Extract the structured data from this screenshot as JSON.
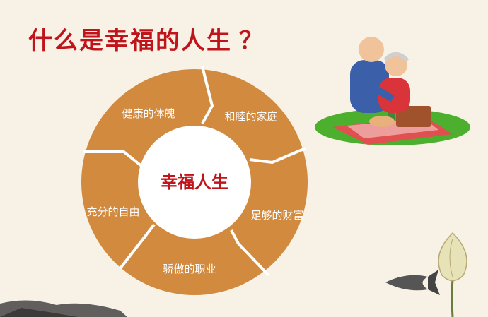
{
  "slide": {
    "title": "什么是幸福的人生",
    "title_mark": "？",
    "center": "幸福人生",
    "segments": [
      {
        "label": "健康的体魄"
      },
      {
        "label": "和睦的家庭"
      },
      {
        "label": "足够的财富"
      },
      {
        "label": "骄傲的职业"
      },
      {
        "label": "充分的自由"
      }
    ]
  },
  "colors": {
    "title": "#c0141b",
    "ring": "#d18a3e",
    "background": "#f7f1e6"
  },
  "icons": [
    "elderly-couple-picnic-illustration",
    "lotus-bud-illustration",
    "koi-fish-illustration",
    "ink-landscape-illustration"
  ]
}
